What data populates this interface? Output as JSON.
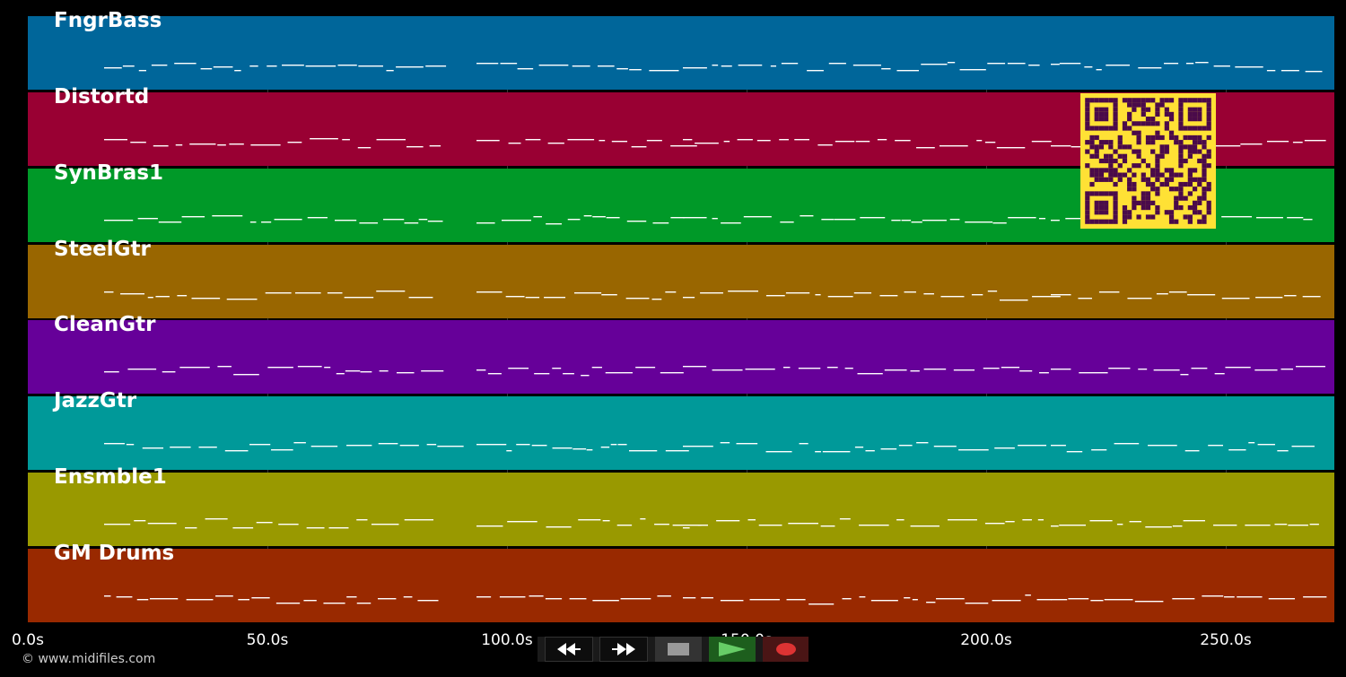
{
  "tracks": [
    {
      "name": "FngrBass",
      "color": "#00669a"
    },
    {
      "name": "Distortd",
      "color": "#990033"
    },
    {
      "name": "SynBras1",
      "color": "#009928"
    },
    {
      "name": "SteelGtr",
      "color": "#996600"
    },
    {
      "name": "CleanGtr",
      "color": "#660099"
    },
    {
      "name": "JazzGtr",
      "color": "#009999"
    },
    {
      "name": "Ensmble1",
      "color": "#999900"
    },
    {
      "name": "GM Drums",
      "color": "#992900"
    }
  ],
  "timeline": {
    "ticks": [
      "0.0s",
      "50.0s",
      "100.0s",
      "150.0s",
      "200.0s",
      "250.0s"
    ],
    "tick_values": [
      0,
      50,
      100,
      150,
      200,
      250
    ]
  },
  "footer": {
    "copyright": "© www.midifiles.com"
  },
  "controls": {
    "rewind_icon": "rewind-icon",
    "forward_icon": "fast-forward-icon",
    "stop_icon": "stop-icon",
    "play_icon": "play-icon",
    "record_icon": "record-icon"
  },
  "qr": {
    "icon": "qr-code-icon",
    "fg": "#ffe135",
    "bg": "#4a0a4a"
  }
}
